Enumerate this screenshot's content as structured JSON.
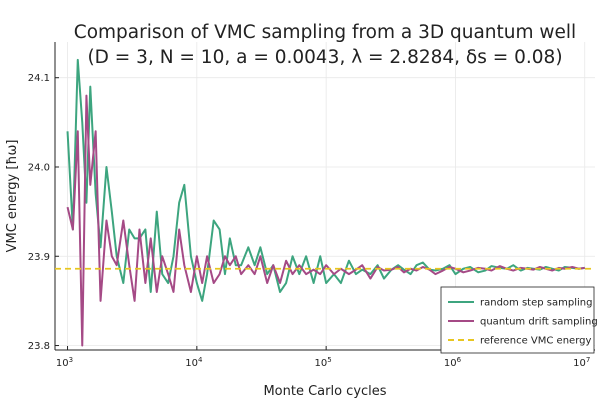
{
  "chart_data": {
    "type": "line",
    "title": "Comparison of VMC sampling from a 3D quantum well",
    "subtitle": "(D = 3, N = 10, a = 0.0043, λ = 2.8284, δs = 0.08)",
    "xlabel": "Monte Carlo cycles",
    "ylabel": "VMC energy [ħω]",
    "xscale": "log",
    "xlim": [
      800,
      12000000
    ],
    "ylim": [
      23.795,
      24.14
    ],
    "xticks": [
      {
        "value": 1000,
        "base": "10",
        "exp": "3"
      },
      {
        "value": 10000,
        "base": "10",
        "exp": "4"
      },
      {
        "value": 100000,
        "base": "10",
        "exp": "5"
      },
      {
        "value": 1000000,
        "base": "10",
        "exp": "6"
      },
      {
        "value": 10000000,
        "base": "10",
        "exp": "7"
      }
    ],
    "yticks": [
      {
        "value": 23.8,
        "label": "23.8"
      },
      {
        "value": 23.9,
        "label": "23.9"
      },
      {
        "value": 24.0,
        "label": "24.0"
      },
      {
        "value": 24.1,
        "label": "24.1"
      }
    ],
    "grid": true,
    "legend_position": "bottom-right",
    "series": [
      {
        "name": "random step sampling",
        "color": "#3da57f",
        "style": "solid",
        "x": [
          1000,
          1100,
          1200,
          1300,
          1400,
          1500,
          1650,
          1800,
          2000,
          2200,
          2400,
          2700,
          3000,
          3300,
          3600,
          4000,
          4400,
          4900,
          5400,
          6000,
          6600,
          7300,
          8000,
          9000,
          10000,
          11000,
          12000,
          13500,
          15000,
          16500,
          18000,
          20000,
          22000,
          25000,
          28000,
          31000,
          35000,
          39000,
          44000,
          49000,
          55000,
          62000,
          70000,
          80000,
          90000,
          100000,
          115000,
          130000,
          150000,
          170000,
          190000,
          220000,
          250000,
          280000,
          320000,
          360000,
          400000,
          450000,
          500000,
          560000,
          630000,
          700000,
          800000,
          900000,
          1000000,
          1150000,
          1300000,
          1500000,
          1700000,
          1900000,
          2200000,
          2500000,
          2800000,
          3200000,
          3600000,
          4000000,
          4500000,
          5000000,
          5600000,
          6300000,
          7000000,
          8000000,
          9000000,
          10000000
        ],
        "values": [
          24.04,
          23.93,
          24.12,
          24.05,
          23.96,
          24.09,
          23.97,
          23.91,
          24.0,
          23.95,
          23.9,
          23.87,
          23.93,
          23.92,
          23.92,
          23.93,
          23.86,
          23.95,
          23.88,
          23.87,
          23.9,
          23.96,
          23.98,
          23.9,
          23.87,
          23.85,
          23.88,
          23.94,
          23.93,
          23.88,
          23.92,
          23.89,
          23.89,
          23.91,
          23.89,
          23.91,
          23.88,
          23.89,
          23.86,
          23.87,
          23.9,
          23.88,
          23.9,
          23.87,
          23.9,
          23.87,
          23.88,
          23.87,
          23.895,
          23.88,
          23.885,
          23.88,
          23.89,
          23.875,
          23.885,
          23.89,
          23.885,
          23.88,
          23.89,
          23.893,
          23.885,
          23.884,
          23.886,
          23.89,
          23.88,
          23.886,
          23.888,
          23.882,
          23.884,
          23.889,
          23.887,
          23.886,
          23.89,
          23.884,
          23.887,
          23.886,
          23.885,
          23.888,
          23.886,
          23.884,
          23.888,
          23.887,
          23.886,
          23.887
        ]
      },
      {
        "name": "quantum drift sampling",
        "color": "#a54a86",
        "style": "solid",
        "x": [
          1000,
          1100,
          1200,
          1300,
          1400,
          1500,
          1650,
          1800,
          2000,
          2200,
          2400,
          2700,
          3000,
          3300,
          3600,
          4000,
          4400,
          4900,
          5400,
          6000,
          6600,
          7300,
          8000,
          9000,
          10000,
          11000,
          12000,
          13500,
          15000,
          16500,
          18000,
          20000,
          22000,
          25000,
          28000,
          31000,
          35000,
          39000,
          44000,
          49000,
          55000,
          62000,
          70000,
          80000,
          90000,
          100000,
          115000,
          130000,
          150000,
          170000,
          190000,
          220000,
          250000,
          280000,
          320000,
          360000,
          400000,
          450000,
          500000,
          560000,
          630000,
          700000,
          800000,
          900000,
          1000000,
          1150000,
          1300000,
          1500000,
          1700000,
          1900000,
          2200000,
          2500000,
          2800000,
          3200000,
          3600000,
          4000000,
          4500000,
          5000000,
          5600000,
          6300000,
          7000000,
          8000000,
          9000000,
          10000000
        ],
        "values": [
          23.955,
          23.93,
          24.04,
          23.8,
          24.08,
          23.98,
          24.04,
          23.85,
          23.94,
          23.9,
          23.89,
          23.94,
          23.89,
          23.85,
          23.93,
          23.87,
          23.92,
          23.86,
          23.9,
          23.88,
          23.86,
          23.93,
          23.89,
          23.86,
          23.9,
          23.87,
          23.9,
          23.87,
          23.88,
          23.9,
          23.89,
          23.9,
          23.88,
          23.89,
          23.88,
          23.9,
          23.87,
          23.89,
          23.87,
          23.895,
          23.88,
          23.89,
          23.88,
          23.885,
          23.88,
          23.89,
          23.88,
          23.886,
          23.88,
          23.885,
          23.89,
          23.875,
          23.888,
          23.884,
          23.885,
          23.888,
          23.882,
          23.886,
          23.884,
          23.888,
          23.885,
          23.88,
          23.884,
          23.888,
          23.886,
          23.882,
          23.884,
          23.887,
          23.886,
          23.884,
          23.889,
          23.886,
          23.884,
          23.887,
          23.886,
          23.885,
          23.888,
          23.886,
          23.884,
          23.887,
          23.886,
          23.888,
          23.886,
          23.887
        ]
      },
      {
        "name": "reference VMC energy",
        "color": "#e8c620",
        "style": "dashed",
        "x": [
          800,
          12000000
        ],
        "values": [
          23.886,
          23.886
        ]
      }
    ]
  }
}
